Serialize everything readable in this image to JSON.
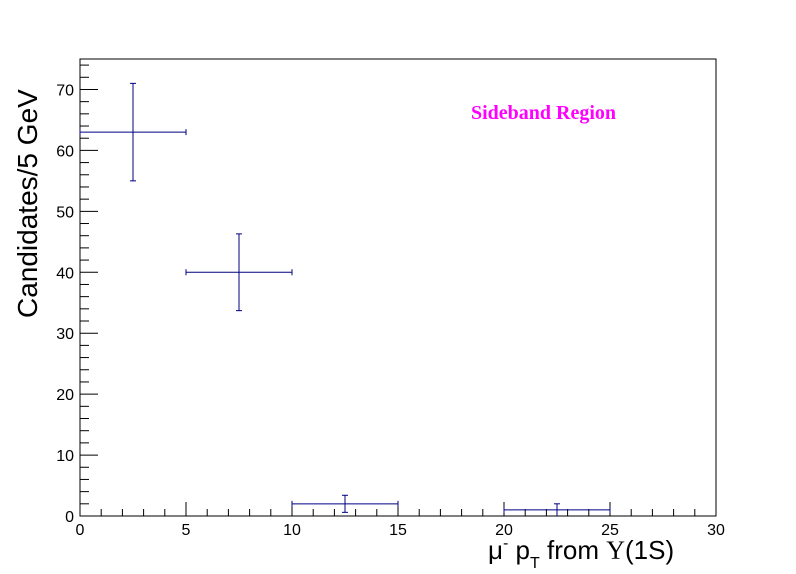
{
  "chart_data": {
    "type": "scatter",
    "xlabel": {
      "main": "μ",
      "sup": "-",
      "p": " p",
      "sub": "T",
      "rest": " from ",
      "upsilon": "Υ",
      "tail": "(1S)"
    },
    "ylabel": "Candidates/5 GeV",
    "xlim": [
      0,
      30
    ],
    "ylim": [
      0,
      75
    ],
    "xticks": [
      0,
      5,
      10,
      15,
      20,
      25,
      30
    ],
    "yticks": [
      0,
      10,
      20,
      30,
      40,
      50,
      60,
      70
    ],
    "points": [
      {
        "x": 2.5,
        "y": 63,
        "xerr": 2.5,
        "yerr": 8
      },
      {
        "x": 7.5,
        "y": 40,
        "xerr": 2.5,
        "yerr": 6.3
      },
      {
        "x": 12.5,
        "y": 2,
        "xerr": 2.5,
        "yerr": 1.4
      },
      {
        "x": 22.5,
        "y": 1,
        "xerr": 2.5,
        "yerr": 1
      }
    ],
    "annotation": {
      "text": "Sideband Region",
      "color": "#ff00ff"
    },
    "marker_color": "#000080",
    "grid": false
  }
}
